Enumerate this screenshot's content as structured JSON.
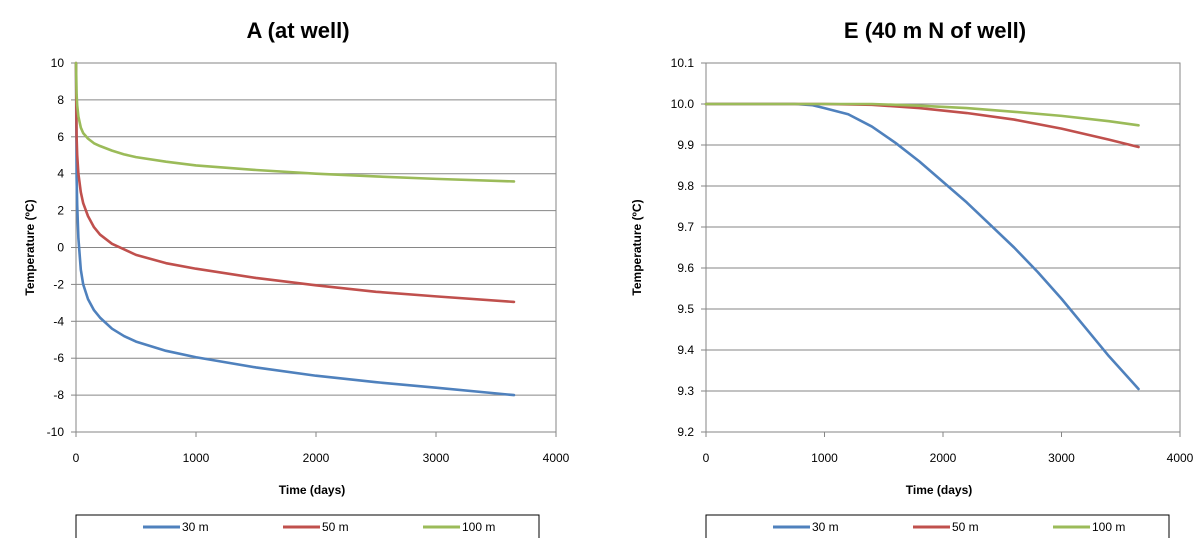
{
  "chart_data": [
    {
      "type": "line",
      "title": "A (at well)",
      "xlabel": "Time (days)",
      "ylabel": "Temperature (ºC)",
      "xlim": [
        0,
        4000
      ],
      "ylim": [
        -10,
        10
      ],
      "xticks": [
        0,
        1000,
        2000,
        3000,
        4000
      ],
      "yticks": [
        -10,
        -8,
        -6,
        -4,
        -2,
        0,
        2,
        4,
        6,
        8,
        10
      ],
      "ytick_decimals": 0,
      "grid": "horizontal",
      "legend_position": "bottom",
      "series": [
        {
          "name": "30 m",
          "color": "#4f81bd",
          "x": [
            0,
            5,
            10,
            20,
            40,
            60,
            100,
            150,
            200,
            300,
            400,
            500,
            750,
            1000,
            1500,
            2000,
            2500,
            3000,
            3650
          ],
          "y": [
            10,
            3.8,
            2.3,
            0.5,
            -1.2,
            -2.0,
            -2.8,
            -3.4,
            -3.8,
            -4.4,
            -4.8,
            -5.1,
            -5.6,
            -5.95,
            -6.5,
            -6.95,
            -7.3,
            -7.6,
            -8.0
          ]
        },
        {
          "name": "50 m",
          "color": "#c0504d",
          "x": [
            0,
            5,
            10,
            20,
            40,
            60,
            100,
            150,
            200,
            300,
            400,
            500,
            750,
            1000,
            1500,
            2000,
            2500,
            3000,
            3650
          ],
          "y": [
            10,
            6.0,
            5.0,
            4.0,
            3.0,
            2.4,
            1.7,
            1.1,
            0.7,
            0.2,
            -0.1,
            -0.4,
            -0.85,
            -1.15,
            -1.65,
            -2.05,
            -2.4,
            -2.65,
            -2.95
          ]
        },
        {
          "name": "100 m",
          "color": "#9bbb59",
          "x": [
            0,
            5,
            10,
            20,
            40,
            60,
            100,
            150,
            200,
            300,
            400,
            500,
            750,
            1000,
            1500,
            2000,
            2500,
            3000,
            3650
          ],
          "y": [
            10,
            8.3,
            7.7,
            7.1,
            6.5,
            6.2,
            5.9,
            5.65,
            5.5,
            5.25,
            5.05,
            4.9,
            4.65,
            4.45,
            4.2,
            4.0,
            3.85,
            3.72,
            3.58
          ]
        }
      ]
    },
    {
      "type": "line",
      "title": "E (40 m N of well)",
      "xlabel": "Time (days)",
      "ylabel": "Temperature (ºC)",
      "xlim": [
        0,
        4000
      ],
      "ylim": [
        9.2,
        10.1
      ],
      "xticks": [
        0,
        1000,
        2000,
        3000,
        4000
      ],
      "yticks": [
        9.2,
        9.3,
        9.4,
        9.5,
        9.6,
        9.7,
        9.8,
        9.9,
        10.0,
        10.1
      ],
      "ytick_decimals": 1,
      "grid": "horizontal",
      "legend_position": "bottom",
      "series": [
        {
          "name": "30 m",
          "color": "#4f81bd",
          "x": [
            0,
            500,
            750,
            900,
            1000,
            1200,
            1400,
            1600,
            1800,
            2000,
            2200,
            2400,
            2600,
            2800,
            3000,
            3200,
            3400,
            3650
          ],
          "y": [
            10.0,
            10.0,
            10.0,
            9.997,
            9.99,
            9.975,
            9.945,
            9.905,
            9.86,
            9.81,
            9.76,
            9.705,
            9.65,
            9.59,
            9.525,
            9.455,
            9.385,
            9.305
          ]
        },
        {
          "name": "50 m",
          "color": "#c0504d",
          "x": [
            0,
            1000,
            1400,
            1800,
            2200,
            2600,
            3000,
            3400,
            3650
          ],
          "y": [
            10.0,
            10.0,
            9.998,
            9.99,
            9.978,
            9.962,
            9.94,
            9.913,
            9.895
          ]
        },
        {
          "name": "100 m",
          "color": "#9bbb59",
          "x": [
            0,
            1000,
            1400,
            1800,
            2200,
            2600,
            3000,
            3400,
            3650
          ],
          "y": [
            10.0,
            10.0,
            10.0,
            9.996,
            9.99,
            9.981,
            9.971,
            9.958,
            9.948
          ]
        }
      ]
    }
  ]
}
